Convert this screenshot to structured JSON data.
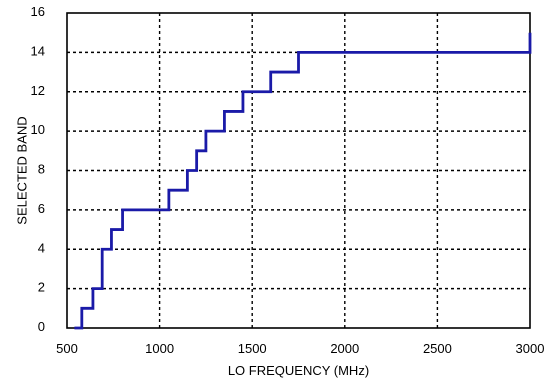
{
  "chart_data": {
    "type": "line",
    "title": "",
    "xlabel": "LO FREQUENCY (MHz)",
    "ylabel": "SELECTED BAND",
    "xlim": [
      500,
      3000
    ],
    "ylim": [
      0,
      16
    ],
    "x_ticks": [
      500,
      1000,
      1500,
      2000,
      2500,
      3000
    ],
    "y_ticks": [
      0,
      2,
      4,
      6,
      8,
      10,
      12,
      14,
      16
    ],
    "grid": true,
    "step": "post",
    "series": [
      {
        "color": "#1a1aa8",
        "x": [
          540,
          580,
          640,
          690,
          740,
          800,
          1050,
          1150,
          1200,
          1250,
          1350,
          1450,
          1600,
          1750,
          3000
        ],
        "y": [
          0,
          1,
          2,
          4,
          5,
          6,
          7,
          8,
          9,
          10,
          11,
          12,
          13,
          14,
          15
        ]
      }
    ]
  }
}
